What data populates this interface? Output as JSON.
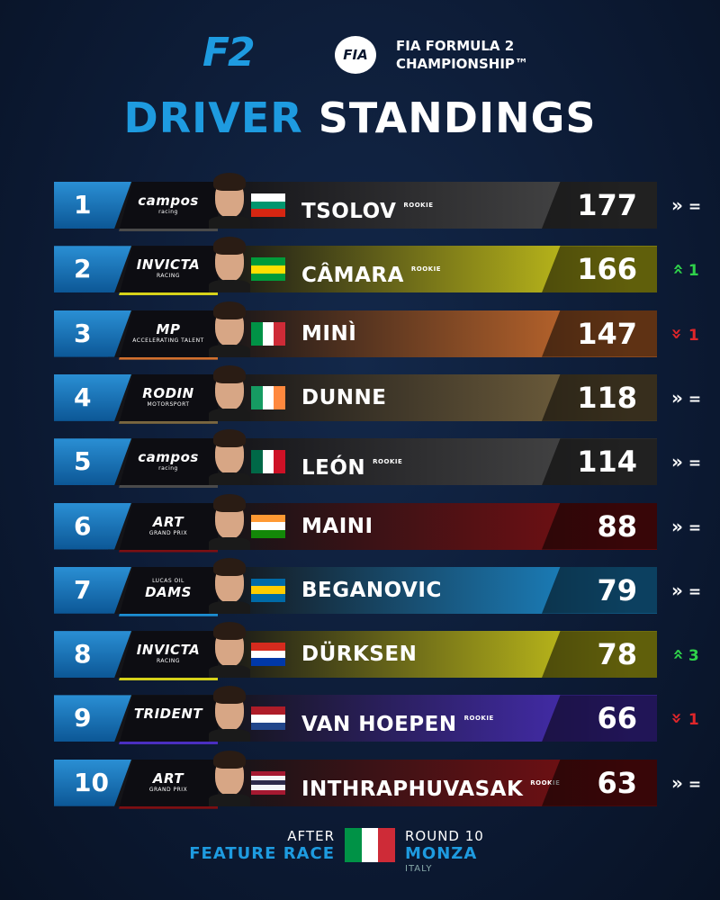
{
  "header": {
    "logo": "F2",
    "badge": "FIA",
    "line1": "FIA FORMULA 2",
    "line2": "CHAMPIONSHIP™"
  },
  "title": {
    "first": "DRIVER",
    "second": "STANDINGS"
  },
  "rows": [
    {
      "position": 1,
      "team": {
        "name": "campos",
        "sub": "racing"
      },
      "color": "#4a4a4a",
      "flag": {
        "stripes": [
          "#ffffff",
          "#00966e",
          "#d62612"
        ],
        "dir": "column"
      },
      "driver": "TSOLOV",
      "rookie": "ROOKIE",
      "points": 177,
      "trend": "same",
      "change": "="
    },
    {
      "position": 2,
      "team": {
        "name": "INVICTA",
        "sub": "RACING"
      },
      "color": "#d6d21a",
      "flag": {
        "stripes": [
          "#009b3a",
          "#fedf00",
          "#009b3a"
        ],
        "dir": "column"
      },
      "driver": "CÂMARA",
      "rookie": "ROOKIE",
      "points": 166,
      "trend": "up",
      "change": 1
    },
    {
      "position": 3,
      "team": {
        "name": "MP",
        "sub": "ACCELERATING TALENT"
      },
      "color": "#d2702e",
      "flag": {
        "stripes": [
          "#009246",
          "#ffffff",
          "#ce2b37"
        ],
        "dir": "row"
      },
      "driver": "MINÌ",
      "points": 147,
      "trend": "down",
      "change": 1
    },
    {
      "position": 4,
      "team": {
        "name": "RODIN",
        "sub": "MOTORSPORT"
      },
      "color": "#7a6740",
      "flag": {
        "stripes": [
          "#169b62",
          "#ffffff",
          "#ff883e"
        ],
        "dir": "row"
      },
      "driver": "DUNNE",
      "points": 118,
      "trend": "same",
      "change": "="
    },
    {
      "position": 5,
      "team": {
        "name": "campos",
        "sub": "racing"
      },
      "color": "#4a4a4a",
      "flag": {
        "stripes": [
          "#006847",
          "#ffffff",
          "#ce1126"
        ],
        "dir": "row"
      },
      "driver": "LEÓN",
      "rookie": "ROOKIE",
      "points": 114,
      "trend": "same",
      "change": "="
    },
    {
      "position": 6,
      "team": {
        "name": "ART",
        "sub": "GRAND PRIX"
      },
      "color": "#7d0f12",
      "flag": {
        "stripes": [
          "#ff9933",
          "#ffffff",
          "#138808"
        ],
        "dir": "column"
      },
      "driver": "MAINI",
      "points": 88,
      "trend": "same",
      "change": "="
    },
    {
      "position": 7,
      "team": {
        "name": "DAMS",
        "sub": "LUCAS OIL"
      },
      "color": "#1c8fd4",
      "flag": {
        "stripes": [
          "#006aa7",
          "#fecc00",
          "#006aa7"
        ],
        "dir": "column"
      },
      "driver": "BEGANOVIC",
      "points": 79,
      "trend": "same",
      "change": "="
    },
    {
      "position": 8,
      "team": {
        "name": "INVICTA",
        "sub": "RACING"
      },
      "color": "#d6d21a",
      "flag": {
        "stripes": [
          "#d52b1e",
          "#ffffff",
          "#0038a8"
        ],
        "dir": "column"
      },
      "driver": "DÜRKSEN",
      "points": 78,
      "trend": "up",
      "change": 3
    },
    {
      "position": 9,
      "team": {
        "name": "TRIDENT"
      },
      "color": "#4a2fc0",
      "flag": {
        "stripes": [
          "#ae1c28",
          "#ffffff",
          "#21468b"
        ],
        "dir": "column"
      },
      "driver": "VAN HOEPEN",
      "rookie": "ROOKIE",
      "points": 66,
      "trend": "down",
      "change": 1
    },
    {
      "position": 10,
      "team": {
        "name": "ART",
        "sub": "GRAND PRIX"
      },
      "color": "#7d0f12",
      "flag": {
        "stripes": [
          "#a51931",
          "#f4f5f8",
          "#2d2a4a",
          "#f4f5f8",
          "#a51931"
        ],
        "dir": "column"
      },
      "driver": "INTHRAPHUVASAK",
      "rookie": "ROOKIE",
      "points": 63,
      "trend": "same",
      "change": "="
    }
  ],
  "footer": {
    "after": "AFTER",
    "race": "FEATURE RACE",
    "round": "ROUND 10",
    "venue": "MONZA",
    "country": "ITALY",
    "flag": {
      "stripes": [
        "#009246",
        "#ffffff",
        "#ce2b37"
      ],
      "dir": "row"
    }
  }
}
